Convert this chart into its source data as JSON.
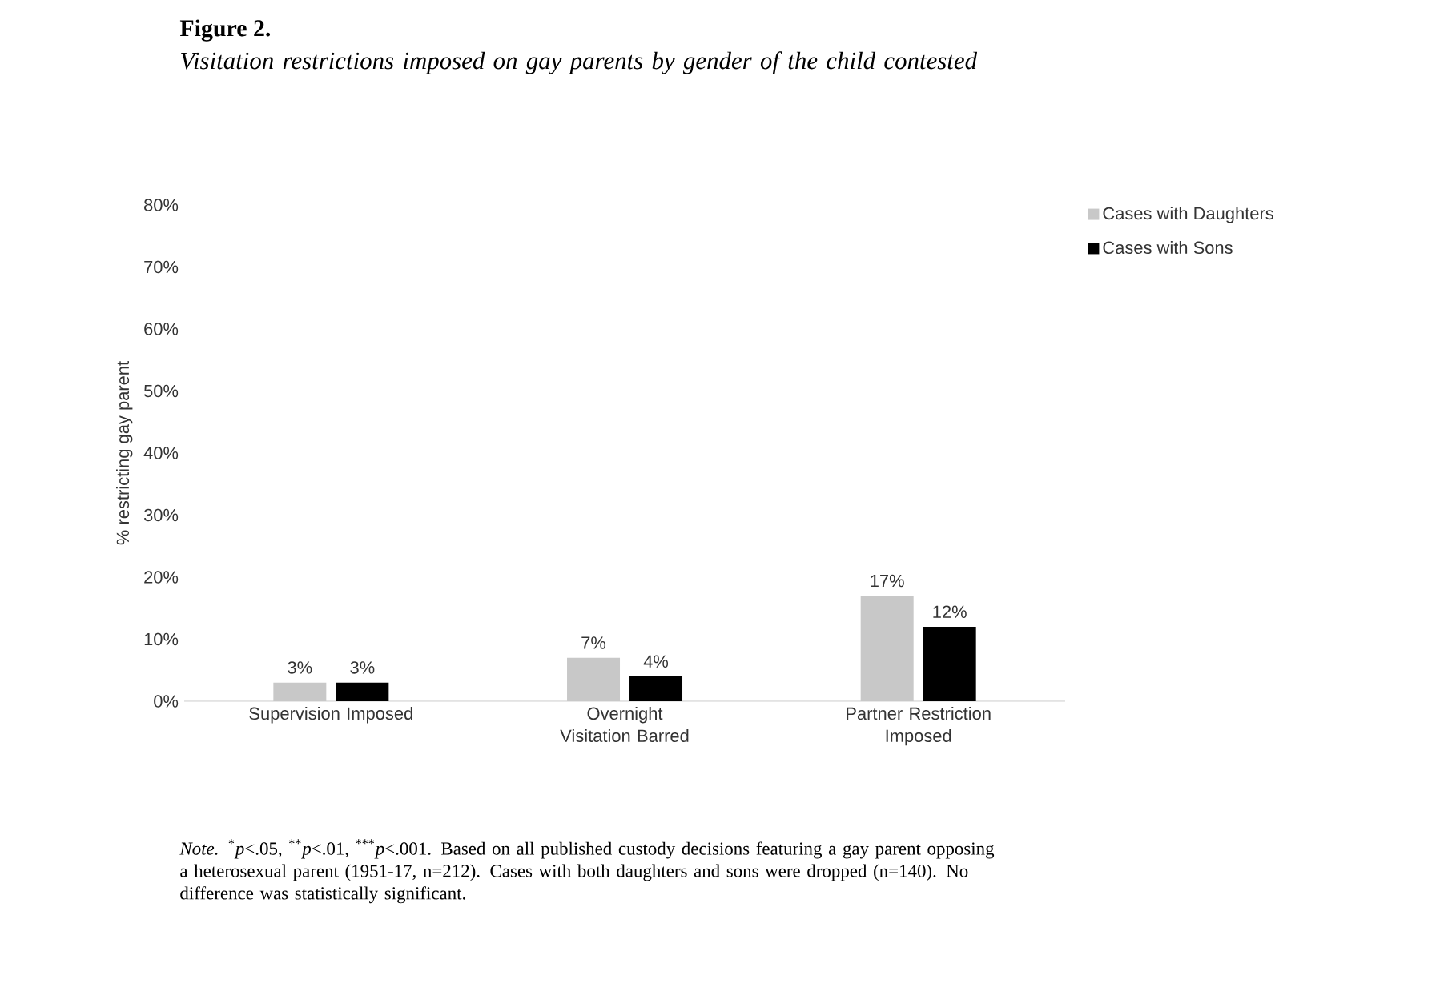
{
  "chart_data": {
    "type": "bar",
    "title": "Figure 2.",
    "subtitle": "Visitation restrictions imposed on gay parents by gender of the child contested",
    "ylabel": "% restricting gay parent",
    "categories": [
      "Supervision Imposed",
      "Overnight Visitation Barred",
      "Partner Restriction Imposed"
    ],
    "series": [
      {
        "name": "Cases with Daughters",
        "color": "#c8c8c8",
        "values": [
          3,
          7,
          17
        ],
        "value_labels": [
          "3%",
          "7%",
          "17%"
        ]
      },
      {
        "name": "Cases with Sons",
        "color": "#000000",
        "values": [
          3,
          4,
          12
        ],
        "value_labels": [
          "3%",
          "4%",
          "12%"
        ]
      }
    ],
    "ylim": [
      0,
      80
    ],
    "yticks": [
      {
        "value": 0,
        "label": "0%"
      },
      {
        "value": 10,
        "label": "10%"
      },
      {
        "value": 20,
        "label": "20%"
      },
      {
        "value": 30,
        "label": "30%"
      },
      {
        "value": 40,
        "label": "40%"
      },
      {
        "value": 50,
        "label": "50%"
      },
      {
        "value": 60,
        "label": "60%"
      },
      {
        "value": 70,
        "label": "70%"
      },
      {
        "value": 80,
        "label": "80%"
      }
    ],
    "legend": "top right",
    "annotations": [
      "*Note.* $^{*}$*p*<.05, $^{**}$*p*<.01, $^{***}$*p*<.001. Based on all published custody decisions featuring a gay parent opposing a heterosexual parent (1951-17, n=212). Cases with both daughters and sons were dropped (n=140). No difference was statistically significant."
    ]
  }
}
